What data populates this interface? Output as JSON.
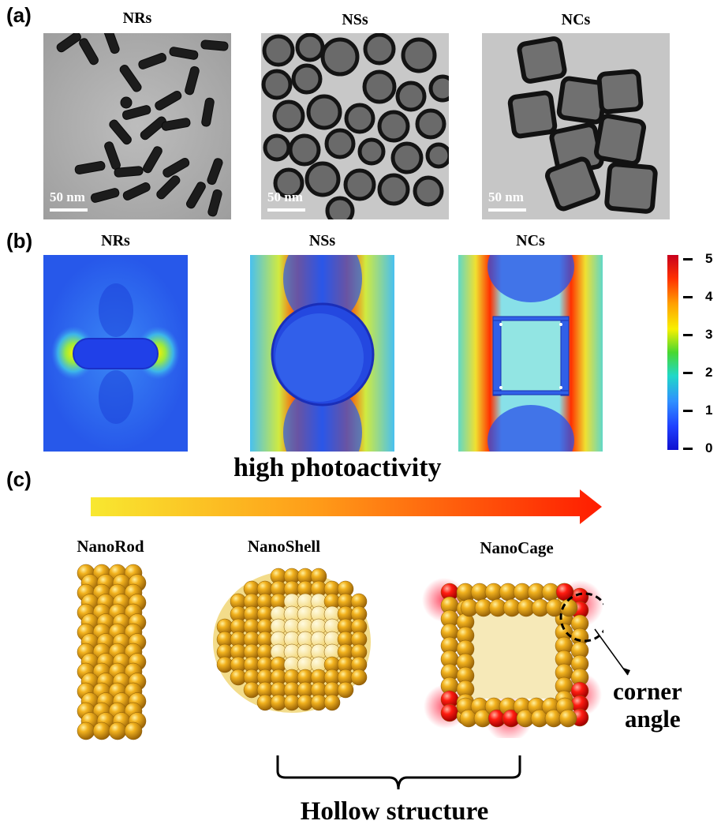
{
  "panel_a": {
    "label": "(a)",
    "items": [
      {
        "title": "NRs",
        "scale": "50 nm"
      },
      {
        "title": "NSs",
        "scale": "50 nm"
      },
      {
        "title": "NCs",
        "scale": "50 nm"
      }
    ]
  },
  "panel_b": {
    "label": "(b)",
    "items": [
      {
        "title": "NRs"
      },
      {
        "title": "NSs"
      },
      {
        "title": "NCs"
      }
    ],
    "colorbar": {
      "ticks": [
        "5",
        "4",
        "3",
        "2",
        "1",
        "0"
      ],
      "min": 0,
      "max": 5,
      "colors": [
        "#c8001e",
        "#ff3000",
        "#ffa000",
        "#f8f000",
        "#48d830",
        "#20d8c8",
        "#3090ff",
        "#2040ff",
        "#1010d0"
      ]
    }
  },
  "panel_c": {
    "label": "(c)",
    "arrow_text": "high photoactivity",
    "structures": [
      "NanoRod",
      "NanoShell",
      "NanoCage"
    ],
    "corner_text_1": "corner",
    "corner_text_2": "angle",
    "brace_text": "Hollow structure",
    "colors": {
      "gold": "#f2b21e",
      "red_glow": "#ff1030"
    }
  }
}
